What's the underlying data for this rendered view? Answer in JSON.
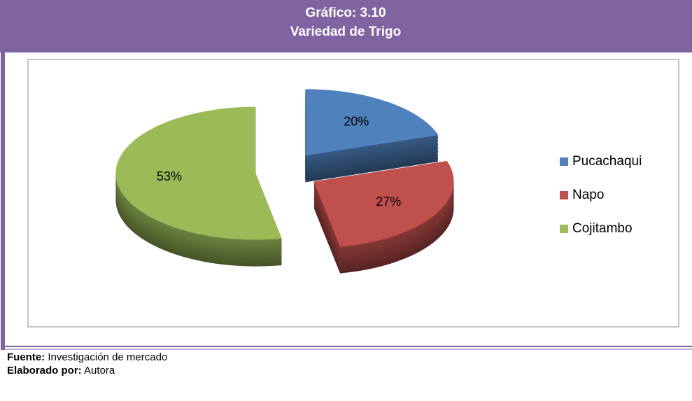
{
  "chart_data": {
    "type": "pie",
    "figure_label": "Gráfico: 3.10",
    "title": "Variedad de Trigo",
    "categories": [
      "Pucachaqui",
      "Napo",
      "Cojitambo"
    ],
    "values": [
      20,
      27,
      53
    ],
    "value_labels": [
      "20%",
      "27%",
      "53%"
    ],
    "colors": [
      "#4f81bd",
      "#c0504d",
      "#9bbb59"
    ],
    "legend": "right"
  },
  "footer": {
    "source_label": "Fuente:",
    "source": "Investigación de mercado",
    "author_label": "Elaborado por:",
    "author": "Autora"
  }
}
